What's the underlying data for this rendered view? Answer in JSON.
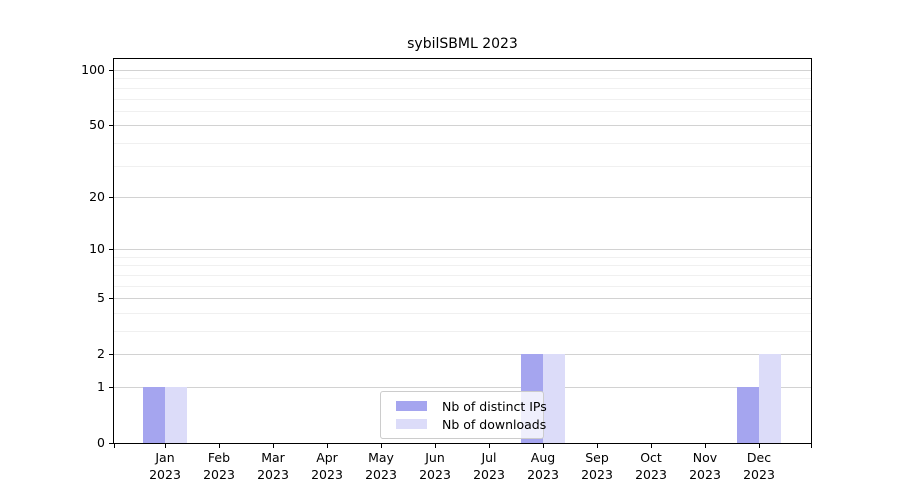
{
  "title": "sybilSBML 2023",
  "chart_data": {
    "type": "bar",
    "title": "sybilSBML 2023",
    "xlabel": "",
    "ylabel": "",
    "x_tick_labels": [
      {
        "month": "Jan",
        "year": "2023"
      },
      {
        "month": "Feb",
        "year": "2023"
      },
      {
        "month": "Mar",
        "year": "2023"
      },
      {
        "month": "Apr",
        "year": "2023"
      },
      {
        "month": "May",
        "year": "2023"
      },
      {
        "month": "Jun",
        "year": "2023"
      },
      {
        "month": "Jul",
        "year": "2023"
      },
      {
        "month": "Aug",
        "year": "2023"
      },
      {
        "month": "Sep",
        "year": "2023"
      },
      {
        "month": "Oct",
        "year": "2023"
      },
      {
        "month": "Nov",
        "year": "2023"
      },
      {
        "month": "Dec",
        "year": "2023"
      }
    ],
    "series": [
      {
        "name": "Nb of distinct IPs",
        "color": "#a5a5ef",
        "values": [
          1,
          0,
          0,
          0,
          0,
          0,
          0,
          2,
          0,
          0,
          0,
          1
        ]
      },
      {
        "name": "Nb of downloads",
        "color": "#dcdcf9",
        "values": [
          1,
          0,
          0,
          0,
          0,
          0,
          0,
          2,
          0,
          0,
          0,
          2
        ]
      }
    ],
    "yscale": "log1p",
    "ylim": [
      0,
      115
    ],
    "major_yticks": [
      0,
      1,
      2,
      5,
      10,
      20,
      50,
      100
    ],
    "minor_grid_values": [
      3,
      4,
      6,
      7,
      8,
      9,
      30,
      40,
      60,
      70,
      80,
      90
    ],
    "grid": true,
    "legend_position": "inside-lower-center"
  },
  "colors": {
    "background": "#ffffff",
    "axis": "#000000",
    "major_grid": "#d2d2d2",
    "minor_grid": "#f0f0f0",
    "legend_border": "#cccccc"
  }
}
